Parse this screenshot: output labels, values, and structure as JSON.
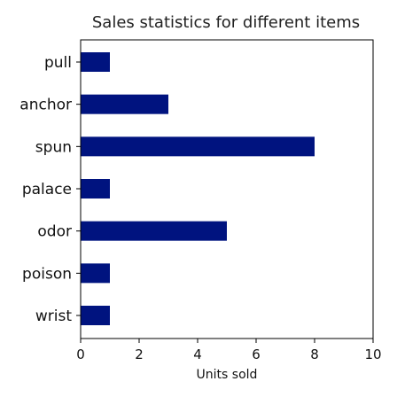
{
  "chart_data": {
    "type": "bar",
    "orientation": "horizontal",
    "title": "Sales statistics for different items",
    "xlabel": "Units sold",
    "ylabel": "",
    "categories": [
      "pull",
      "anchor",
      "spun",
      "palace",
      "odor",
      "poison",
      "wrist"
    ],
    "values": [
      1,
      3,
      8,
      1,
      5,
      1,
      1
    ],
    "xlim": [
      0,
      10
    ],
    "xticks": [
      "0",
      "2",
      "4",
      "6",
      "8",
      "10"
    ],
    "grid": false,
    "bar_color": "#00137f"
  }
}
